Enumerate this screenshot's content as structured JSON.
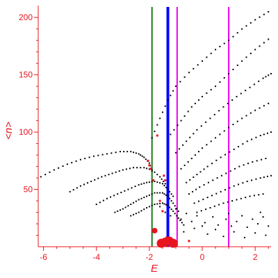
{
  "chart_data": {
    "type": "scatter",
    "title": "",
    "xlabel": "E",
    "ylabel": "<n>",
    "xlim": [
      -6.2,
      2.6
    ],
    "ylim": [
      0,
      208
    ],
    "x_ticks": [
      -6,
      -4,
      -2,
      0,
      2
    ],
    "y_ticks": [
      50,
      100,
      150,
      200
    ],
    "grid": false,
    "legend": "none",
    "colors": {
      "axis": "#e8141e",
      "points": "#000000",
      "highlight": "#e8141e",
      "line_green": "#1a7a1a",
      "line_blue": "#0000ff",
      "line_magenta": "#ee00ee"
    },
    "vertical_lines": [
      {
        "x": -1.9,
        "color": "green",
        "width": 2
      },
      {
        "x": -1.3,
        "color": "blue",
        "width": 4
      },
      {
        "x": -0.95,
        "color": "magenta",
        "width": 2
      },
      {
        "x": 1.0,
        "color": "magenta",
        "width": 2
      }
    ],
    "series": [
      {
        "values": [
          [
            -6.1,
            61
          ],
          [
            -5.6,
            67
          ],
          [
            -5.1,
            72
          ],
          [
            -4.6,
            76
          ],
          [
            -4.1,
            79
          ],
          [
            -3.6,
            81
          ],
          [
            -3.1,
            83
          ],
          [
            -2.7,
            83
          ],
          [
            -2.4,
            81
          ],
          [
            -2.2,
            78
          ],
          [
            -2.0,
            73
          ],
          [
            -1.9,
            66
          ]
        ]
      },
      {
        "values": [
          [
            -5.0,
            48
          ],
          [
            -4.6,
            53
          ],
          [
            -4.2,
            57
          ],
          [
            -3.8,
            61
          ],
          [
            -3.4,
            64
          ],
          [
            -3.0,
            67
          ],
          [
            -2.6,
            69
          ],
          [
            -2.2,
            69
          ],
          [
            -1.9,
            67
          ],
          [
            -1.6,
            61
          ],
          [
            -1.4,
            55
          ]
        ]
      },
      {
        "values": [
          [
            -4.0,
            37
          ],
          [
            -3.6,
            42
          ],
          [
            -3.2,
            46
          ],
          [
            -2.8,
            50
          ],
          [
            -2.4,
            54
          ],
          [
            -2.1,
            56
          ],
          [
            -1.8,
            57
          ],
          [
            -1.5,
            55
          ],
          [
            -1.3,
            50
          ],
          [
            -1.1,
            44
          ]
        ]
      },
      {
        "values": [
          [
            -3.3,
            30
          ],
          [
            -3.0,
            33
          ],
          [
            -2.7,
            37
          ],
          [
            -2.4,
            41
          ],
          [
            -2.1,
            44
          ],
          [
            -1.8,
            47
          ],
          [
            -1.5,
            47
          ],
          [
            -1.3,
            44
          ],
          [
            -1.1,
            38
          ],
          [
            -0.9,
            31
          ]
        ]
      },
      {
        "values": [
          [
            -2.7,
            27
          ],
          [
            -2.4,
            30
          ],
          [
            -2.1,
            34
          ],
          [
            -1.8,
            37
          ],
          [
            -1.5,
            38
          ],
          [
            -1.3,
            36
          ],
          [
            -1.1,
            31
          ],
          [
            -0.9,
            25
          ],
          [
            -0.7,
            19
          ]
        ]
      },
      {
        "values": [
          [
            -1.9,
            95
          ],
          [
            -1.6,
            112
          ],
          [
            -1.3,
            128
          ],
          [
            -1.0,
            140
          ],
          [
            -0.5,
            152
          ],
          [
            0.0,
            162
          ],
          [
            0.5,
            172
          ],
          [
            1.0,
            180
          ],
          [
            1.5,
            190
          ],
          [
            2.0,
            198
          ],
          [
            2.5,
            205
          ]
        ]
      },
      {
        "values": [
          [
            -1.2,
            98
          ],
          [
            -0.8,
            110
          ],
          [
            -0.4,
            122
          ],
          [
            0.0,
            131
          ],
          [
            0.5,
            140
          ],
          [
            1.0,
            151
          ],
          [
            1.5,
            162
          ],
          [
            2.0,
            172
          ],
          [
            2.5,
            181
          ]
        ]
      },
      {
        "values": [
          [
            -1.0,
            82
          ],
          [
            -0.6,
            92
          ],
          [
            -0.2,
            102
          ],
          [
            0.3,
            112
          ],
          [
            0.8,
            122
          ],
          [
            1.3,
            131
          ],
          [
            1.8,
            139
          ],
          [
            2.3,
            147
          ],
          [
            2.6,
            151
          ]
        ]
      },
      {
        "values": [
          [
            -0.8,
            68
          ],
          [
            -0.4,
            77
          ],
          [
            0.0,
            86
          ],
          [
            0.5,
            95
          ],
          [
            1.0,
            104
          ],
          [
            1.5,
            112
          ],
          [
            2.0,
            119
          ],
          [
            2.5,
            125
          ]
        ]
      },
      {
        "values": [
          [
            -0.6,
            56
          ],
          [
            -0.2,
            63
          ],
          [
            0.2,
            70
          ],
          [
            0.7,
            78
          ],
          [
            1.2,
            85
          ],
          [
            1.7,
            92
          ],
          [
            2.2,
            97
          ],
          [
            2.6,
            100
          ]
        ]
      },
      {
        "values": [
          [
            -0.5,
            46
          ],
          [
            -0.1,
            52
          ],
          [
            0.4,
            58
          ],
          [
            0.9,
            64
          ],
          [
            1.4,
            70
          ],
          [
            1.9,
            74
          ],
          [
            2.4,
            77
          ]
        ]
      },
      {
        "values": [
          [
            -0.3,
            38
          ],
          [
            0.2,
            43
          ],
          [
            0.7,
            48
          ],
          [
            1.2,
            53
          ],
          [
            1.7,
            57
          ],
          [
            2.2,
            60
          ],
          [
            2.6,
            62
          ]
        ]
      },
      {
        "values": [
          [
            -0.2,
            30
          ],
          [
            0.3,
            34
          ],
          [
            0.8,
            38
          ],
          [
            1.3,
            41
          ],
          [
            1.8,
            44
          ],
          [
            2.3,
            46
          ]
        ]
      },
      {
        "values": [
          [
            -1.6,
            35
          ],
          [
            -1.4,
            30
          ],
          [
            -1.2,
            27
          ],
          [
            -1.0,
            33
          ],
          [
            -0.8,
            24
          ],
          [
            -0.6,
            29
          ],
          [
            -0.4,
            22
          ],
          [
            -0.2,
            27
          ],
          [
            0.1,
            21
          ],
          [
            0.4,
            26
          ],
          [
            0.6,
            19
          ],
          [
            0.9,
            24
          ],
          [
            1.1,
            18
          ],
          [
            1.3,
            22
          ],
          [
            1.5,
            27
          ],
          [
            1.7,
            17
          ],
          [
            1.9,
            24
          ],
          [
            2.1,
            20
          ],
          [
            2.3,
            26
          ],
          [
            2.5,
            18
          ],
          [
            -0.7,
            13
          ],
          [
            -0.3,
            16
          ],
          [
            0.2,
            11
          ],
          [
            0.5,
            15
          ],
          [
            0.8,
            9
          ],
          [
            1.2,
            13
          ],
          [
            1.6,
            8
          ],
          [
            2.0,
            12
          ],
          [
            2.4,
            10
          ],
          [
            0.0,
            18
          ],
          [
            1.0,
            29
          ],
          [
            2.2,
            30
          ]
        ]
      }
    ],
    "highlight_points": [
      [
        -2.05,
        75
      ],
      [
        -2.0,
        71
      ],
      [
        -1.95,
        68
      ],
      [
        -1.7,
        97
      ],
      [
        -1.45,
        62
      ],
      [
        -1.4,
        58
      ],
      [
        -1.85,
        58
      ],
      [
        -1.6,
        40
      ],
      [
        -1.5,
        31
      ],
      [
        -0.5,
        5
      ],
      [
        -1.35,
        8
      ]
    ],
    "highlight_large": [
      [
        -1.55,
        3
      ],
      [
        -1.4,
        4
      ],
      [
        -1.25,
        5
      ],
      [
        -1.1,
        3
      ]
    ],
    "highlight_medium": [
      [
        -1.8,
        14
      ]
    ]
  }
}
